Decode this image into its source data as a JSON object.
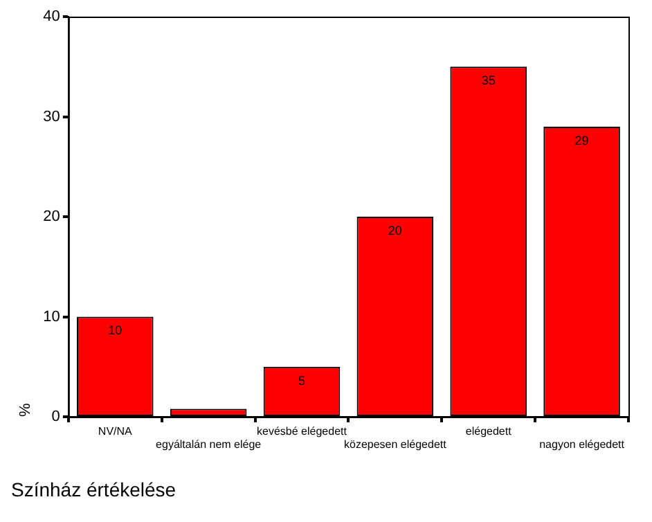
{
  "chart_data": {
    "type": "bar",
    "title": "Színház értékelése",
    "ylabel": "%",
    "categories": [
      "NV/NA",
      "egyáltalán nem elége",
      "kevésbé elégedett",
      "közepesen elégedett",
      "elégedett",
      "nagyon elégedett"
    ],
    "values": [
      10,
      0.8,
      5,
      20,
      35,
      29
    ],
    "value_labels": [
      "10",
      null,
      "5",
      "20",
      "35",
      "29"
    ],
    "color": "#ff0000",
    "ylim": [
      0,
      40
    ],
    "yticks": [
      0,
      10,
      20,
      30,
      40
    ],
    "grid": false,
    "legend": false
  }
}
